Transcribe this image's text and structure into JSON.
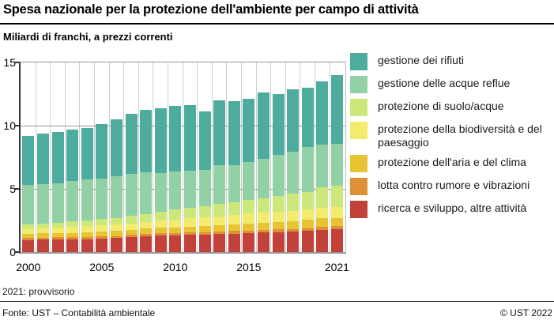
{
  "header": {
    "title": "Spesa nazionale per la protezione dell'ambiente per campo di attività",
    "subtitle": "Miliardi di franchi, a prezzi correnti"
  },
  "chart_data": {
    "type": "bar",
    "stacked": true,
    "title": "Spesa nazionale per la protezione dell'ambiente per campo di attività",
    "ylabel": "Miliardi di franchi, a prezzi correnti",
    "xlabel": "",
    "ylim": [
      0,
      15
    ],
    "yticks": [
      0,
      5,
      10,
      15
    ],
    "xticks": [
      2000,
      2005,
      2010,
      2015,
      2021
    ],
    "grid": true,
    "legend_position": "right",
    "years": [
      2000,
      2001,
      2002,
      2003,
      2004,
      2005,
      2006,
      2007,
      2008,
      2009,
      2010,
      2011,
      2012,
      2013,
      2014,
      2015,
      2016,
      2017,
      2018,
      2019,
      2020,
      2021
    ],
    "series_bottom_to_top": [
      {
        "name": "ricerca e sviluppo, altre attività",
        "color": "#C2413A",
        "values": [
          0.95,
          0.97,
          0.99,
          1.0,
          1.03,
          1.06,
          1.1,
          1.18,
          1.27,
          1.3,
          1.33,
          1.36,
          1.38,
          1.42,
          1.46,
          1.5,
          1.54,
          1.58,
          1.62,
          1.67,
          1.75,
          1.79
        ]
      },
      {
        "name": "lotta contro rumore e vibrazioni",
        "color": "#DD9035",
        "values": [
          0.17,
          0.17,
          0.17,
          0.17,
          0.17,
          0.17,
          0.18,
          0.18,
          0.18,
          0.19,
          0.19,
          0.2,
          0.2,
          0.2,
          0.21,
          0.21,
          0.21,
          0.21,
          0.22,
          0.22,
          0.25,
          0.25
        ]
      },
      {
        "name": "protezione dell'aria e del clima",
        "color": "#E8C433",
        "values": [
          0.33,
          0.34,
          0.35,
          0.36,
          0.37,
          0.38,
          0.39,
          0.41,
          0.42,
          0.44,
          0.45,
          0.47,
          0.48,
          0.5,
          0.52,
          0.54,
          0.56,
          0.58,
          0.61,
          0.65,
          0.67,
          0.67
        ]
      },
      {
        "name": "protezione della biodiversità e del paesaggio",
        "color": "#F2EB6E",
        "values": [
          0.37,
          0.4,
          0.42,
          0.45,
          0.47,
          0.5,
          0.5,
          0.5,
          0.5,
          0.55,
          0.6,
          0.65,
          0.68,
          0.72,
          0.75,
          0.79,
          0.79,
          0.79,
          0.8,
          0.81,
          0.83,
          0.83
        ]
      },
      {
        "name": "protezione di suolo/acque",
        "color": "#CCE87A",
        "values": [
          0.35,
          0.38,
          0.41,
          0.44,
          0.47,
          0.5,
          0.55,
          0.6,
          0.66,
          0.72,
          0.78,
          0.84,
          0.9,
          0.96,
          1.0,
          1.06,
          1.18,
          1.29,
          1.35,
          1.41,
          1.64,
          1.7
        ]
      },
      {
        "name": "gestione delle acque reflue",
        "color": "#92D1A6",
        "values": [
          3.12,
          3.12,
          3.08,
          3.18,
          3.22,
          3.2,
          3.3,
          3.32,
          3.29,
          3.08,
          3.03,
          2.9,
          2.88,
          3.1,
          2.96,
          3.05,
          3.12,
          3.25,
          3.32,
          3.54,
          3.36,
          3.33
        ]
      },
      {
        "name": "gestione dei rifiuti",
        "color": "#4DAC9E",
        "values": [
          3.9,
          4.0,
          4.06,
          4.09,
          4.1,
          4.34,
          4.46,
          4.75,
          4.93,
          5.12,
          5.17,
          5.18,
          4.63,
          5.1,
          5.05,
          4.95,
          5.2,
          4.8,
          4.98,
          4.7,
          5.0,
          5.43
        ]
      }
    ],
    "totals": [
      9.19,
      9.38,
      9.48,
      9.69,
      9.83,
      10.15,
      10.48,
      10.94,
      11.25,
      11.4,
      11.55,
      11.6,
      11.15,
      12.0,
      11.95,
      12.1,
      12.6,
      12.5,
      12.9,
      13.0,
      13.5,
      14.0
    ]
  },
  "legend": {
    "items": [
      {
        "label": "gestione dei rifiuti",
        "color": "#4DAC9E"
      },
      {
        "label": "gestione delle acque reflue",
        "color": "#92D1A6"
      },
      {
        "label": "protezione di suolo/acque",
        "color": "#CCE87A"
      },
      {
        "label": "protezione della biodiversità e del paesaggio",
        "color": "#F2EB6E"
      },
      {
        "label": "protezione dell'aria e del clima",
        "color": "#E8C433"
      },
      {
        "label": "lotta contro rumore e vibrazioni",
        "color": "#DD9035"
      },
      {
        "label": "ricerca e sviluppo, altre attività",
        "color": "#C2413A"
      }
    ]
  },
  "footnote": "2021: provvisorio",
  "footer": {
    "source": "Fonte: UST – Contabilità ambientale",
    "copyright": "© UST 2022"
  }
}
